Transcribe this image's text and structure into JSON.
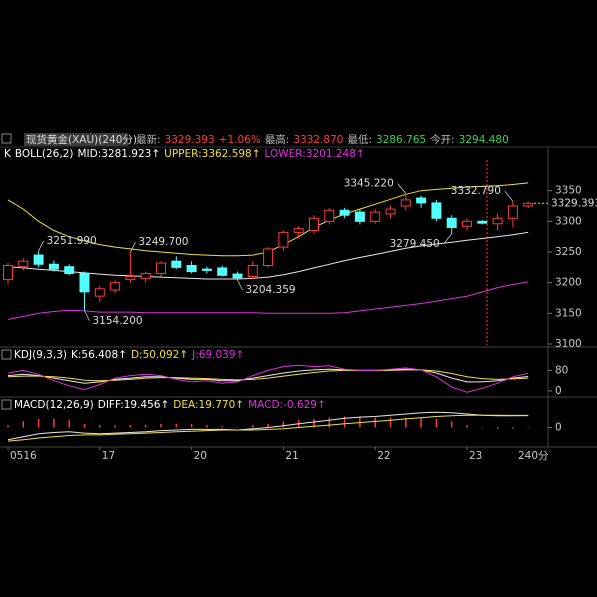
{
  "chart_data": {
    "type": "candlestick",
    "header": {
      "instrument": "现货黄金(XAU)(240分)",
      "items": [
        {
          "text": "最新:",
          "color": "#bbbbbb"
        },
        {
          "text": "3329.393",
          "color": "#ff3b3b"
        },
        {
          "text": "+1.06%",
          "color": "#ff3b3b"
        },
        {
          "text": "最高:",
          "color": "#bbbbbb"
        },
        {
          "text": "3332.870",
          "color": "#ff3b3b"
        },
        {
          "text": "最低:",
          "color": "#bbbbbb"
        },
        {
          "text": "3286.765",
          "color": "#39d353"
        },
        {
          "text": "今开:",
          "color": "#bbbbbb"
        },
        {
          "text": "3294.480",
          "color": "#39d353"
        }
      ]
    },
    "indicator_lines": [
      [
        {
          "text": "K",
          "color": "#ffffff"
        },
        {
          "text": "BOLL(26,2)",
          "color": "#ffffff"
        },
        {
          "text": "MID:3281.923↑",
          "color": "#ffffff"
        },
        {
          "text": "UPPER:3362.598↑",
          "color": "#f0e040"
        },
        {
          "text": "LOWER:3201.248↑",
          "color": "#e030e0"
        }
      ],
      [
        {
          "text": "KDJ(9,3,3)",
          "color": "#ffffff"
        },
        {
          "text": "K:56.408↑",
          "color": "#ffffff"
        },
        {
          "text": "D:50.092↑",
          "color": "#f0e040"
        },
        {
          "text": "J:69.039↑",
          "color": "#e030e0"
        }
      ],
      [
        {
          "text": "MACD(12,26,9)",
          "color": "#ffffff"
        },
        {
          "text": "DIFF:19.456↑",
          "color": "#ffffff"
        },
        {
          "text": "DEA:19.770↑",
          "color": "#f0e040"
        },
        {
          "text": "MACD:-0.629↑",
          "color": "#e030e0"
        }
      ]
    ],
    "categories": [
      "0516",
      null,
      null,
      null,
      null,
      null,
      "17",
      null,
      null,
      null,
      null,
      null,
      "20",
      null,
      null,
      null,
      null,
      null,
      "21",
      null,
      null,
      null,
      null,
      null,
      "22",
      null,
      null,
      null,
      null,
      null,
      "23",
      null,
      null,
      null,
      null
    ],
    "period_label": "240分",
    "up_color": "#ff3b3b",
    "down_color": "#54ffff",
    "open": [
      3205,
      3226,
      3245,
      3230,
      3226,
      3215,
      3178,
      3188,
      3205,
      3207,
      3215,
      3235,
      3228,
      3222,
      3224,
      3214,
      3210,
      3228,
      3258,
      3282,
      3285,
      3300,
      3318,
      3315,
      3300,
      3312,
      3325,
      3338,
      3330,
      3305,
      3292,
      3300,
      3296,
      3305,
      3325
    ],
    "high": [
      3232,
      3240,
      3251.99,
      3236,
      3230,
      3218,
      3195,
      3205,
      3249.7,
      3218,
      3235,
      3243,
      3235,
      3226,
      3228,
      3218,
      3235,
      3258,
      3285,
      3292,
      3310,
      3322,
      3322,
      3320,
      3320,
      3325,
      3345.22,
      3342,
      3335,
      3310,
      3305,
      3302,
      3312,
      3332.79,
      3332
    ],
    "low": [
      3198,
      3220,
      3225,
      3218,
      3212,
      3154.2,
      3168,
      3182,
      3200,
      3200,
      3210,
      3222,
      3215,
      3215,
      3210,
      3204.359,
      3206,
      3225,
      3252,
      3272,
      3280,
      3295,
      3305,
      3295,
      3296,
      3305,
      3318,
      3322,
      3300,
      3279.45,
      3285,
      3295,
      3285,
      3290,
      3322
    ],
    "close": [
      3228,
      3235,
      3230,
      3222,
      3215,
      3185,
      3190,
      3200,
      3210,
      3215,
      3232,
      3225,
      3218,
      3220,
      3212,
      3208,
      3228,
      3255,
      3282,
      3288,
      3305,
      3318,
      3310,
      3300,
      3315,
      3320,
      3335,
      3330,
      3305,
      3290,
      3300,
      3297,
      3305,
      3325,
      3329.393
    ],
    "last_price": {
      "value": 3329.393,
      "label": "3329.393",
      "color": "#f0e040"
    },
    "annotations": [
      {
        "value": 3251.99,
        "label": "3251.990",
        "color": "#ff3b3b"
      },
      {
        "value": 3249.7,
        "label": "3249.700",
        "color": "#ff3b3b"
      },
      {
        "value": 3154.2,
        "label": "3154.200",
        "color": "#54ffff"
      },
      {
        "value": 3204.359,
        "label": "3204.359",
        "color": "#54ffff"
      },
      {
        "value": 3345.22,
        "label": "3345.220",
        "color": "#ff3b3b"
      },
      {
        "value": 3279.45,
        "label": "3279.450",
        "color": "#54ffff"
      },
      {
        "value": 3332.79,
        "label": "3332.790",
        "color": "#ff3b3b"
      }
    ],
    "ylim": [
      3100,
      3400
    ],
    "yticks": [
      3100,
      3150,
      3200,
      3250,
      3300,
      3350
    ],
    "boll": [
      {
        "name": "UPPER",
        "color": "#f0e040",
        "values": [
          3335,
          3320,
          3300,
          3285,
          3275,
          3268,
          3262,
          3258,
          3255,
          3252,
          3250,
          3248,
          3246,
          3245,
          3244,
          3244,
          3245,
          3250,
          3262,
          3275,
          3290,
          3302,
          3312,
          3320,
          3328,
          3336,
          3344,
          3350,
          3352,
          3354,
          3356,
          3357,
          3358,
          3360,
          3362.598
        ]
      },
      {
        "name": "MID",
        "color": "#e8e8e8",
        "values": [
          3226,
          3224,
          3222,
          3220,
          3218,
          3216,
          3214,
          3212,
          3211,
          3210,
          3209,
          3208,
          3207,
          3206,
          3206,
          3206,
          3207,
          3209,
          3213,
          3218,
          3224,
          3230,
          3236,
          3241,
          3246,
          3251,
          3256,
          3260,
          3263,
          3266,
          3269,
          3272,
          3275,
          3278,
          3281.923
        ]
      },
      {
        "name": "LOWER",
        "color": "#e030e0",
        "values": [
          3140,
          3145,
          3150,
          3153,
          3155,
          3154,
          3152,
          3152,
          3152,
          3151,
          3151,
          3151,
          3151,
          3151,
          3151,
          3151,
          3151,
          3150,
          3150,
          3150,
          3150,
          3150,
          3151,
          3154,
          3157,
          3160,
          3163,
          3166,
          3170,
          3174,
          3178,
          3185,
          3192,
          3197,
          3201.248
        ]
      }
    ],
    "kdj": {
      "ylim": [
        -20,
        160
      ],
      "yticks": [
        0,
        80
      ],
      "series": [
        {
          "name": "K",
          "color": "#e8e8e8",
          "values": [
            60,
            65,
            60,
            50,
            40,
            30,
            35,
            45,
            50,
            55,
            55,
            50,
            45,
            45,
            40,
            40,
            50,
            60,
            70,
            78,
            82,
            85,
            82,
            80,
            80,
            82,
            85,
            82,
            70,
            50,
            35,
            35,
            40,
            50,
            56.408
          ]
        },
        {
          "name": "D",
          "color": "#f0e040",
          "values": [
            55,
            58,
            58,
            55,
            50,
            42,
            40,
            42,
            45,
            50,
            52,
            52,
            50,
            48,
            45,
            43,
            45,
            50,
            58,
            65,
            72,
            78,
            80,
            80,
            80,
            80,
            82,
            82,
            78,
            68,
            55,
            48,
            45,
            47,
            50.092
          ]
        },
        {
          "name": "J",
          "color": "#e030e0",
          "values": [
            70,
            80,
            65,
            40,
            20,
            5,
            25,
            50,
            60,
            65,
            60,
            45,
            35,
            40,
            30,
            35,
            60,
            80,
            95,
            100,
            95,
            98,
            85,
            80,
            80,
            85,
            90,
            82,
            55,
            15,
            -5,
            10,
            30,
            55,
            69.039
          ]
        }
      ]
    },
    "macd": {
      "ylim": [
        -30,
        48
      ],
      "yticks": [
        0
      ],
      "series": [
        {
          "name": "DIFF",
          "color": "#e8e8e8",
          "values": [
            -20,
            -15,
            -10,
            -8,
            -7,
            -9,
            -10,
            -9,
            -8,
            -7,
            -5,
            -4,
            -3,
            -3,
            -3,
            -4,
            -2,
            0,
            3,
            6,
            9,
            12,
            15,
            17,
            18,
            20,
            22,
            24,
            25,
            24,
            22,
            20,
            19,
            19,
            19.456
          ]
        },
        {
          "name": "DEA",
          "color": "#f0e040",
          "values": [
            -22,
            -20,
            -17,
            -15,
            -13,
            -12,
            -12,
            -11,
            -10,
            -9,
            -8,
            -7,
            -6,
            -5,
            -4,
            -4,
            -4,
            -3,
            -2,
            0,
            2,
            4,
            6,
            8,
            10,
            12,
            14,
            16,
            18,
            19,
            20,
            20,
            20,
            19.8,
            19.77
          ]
        }
      ],
      "histogram": [
        4,
        10,
        14,
        14,
        12,
        6,
        4,
        4,
        4,
        4,
        6,
        6,
        6,
        4,
        2,
        0,
        4,
        6,
        10,
        12,
        14,
        16,
        18,
        18,
        16,
        16,
        16,
        16,
        14,
        10,
        4,
        0,
        -2,
        -1.6,
        -0.629
      ],
      "pos_color": "#ff3b3b",
      "neg_color": "#2fd0a0"
    }
  }
}
